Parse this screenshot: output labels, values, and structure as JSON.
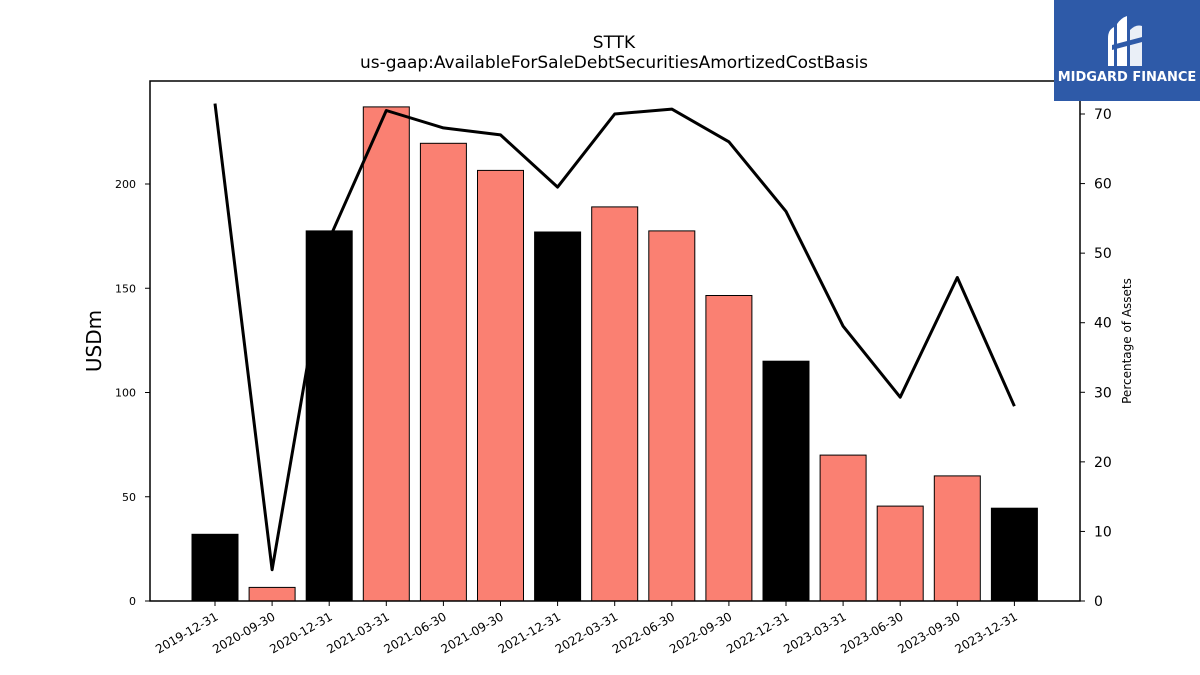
{
  "chart_data": {
    "type": "bar",
    "title": "STTK",
    "subtitle": "us-gaap:AvailableForSaleDebtSecuritiesAmortizedCostBasis",
    "ylabel": "USDm",
    "ylabel_right": "Percentage of Assets",
    "ylim": [
      0,
      240
    ],
    "ylim_right": [
      0,
      75
    ],
    "yticks": [
      0,
      50,
      100,
      150,
      200
    ],
    "yticks_right": [
      0,
      10,
      20,
      30,
      40,
      50,
      60,
      70
    ],
    "grid": false,
    "categories": [
      "2019-12-31",
      "2020-09-30",
      "2020-12-31",
      "2021-03-31",
      "2021-06-30",
      "2021-09-30",
      "2021-12-31",
      "2022-03-31",
      "2022-06-30",
      "2022-09-30",
      "2022-12-31",
      "2023-03-31",
      "2023-06-30",
      "2023-09-30",
      "2023-12-31"
    ],
    "series": [
      {
        "type": "bar",
        "axis": "left",
        "values": [
          32,
          6.5,
          177.5,
          237,
          219.5,
          206.5,
          177,
          189,
          177.5,
          146.5,
          115,
          70,
          45.5,
          60,
          44.5
        ],
        "colors": [
          "#000000",
          "#fa8072",
          "#000000",
          "#fa8072",
          "#fa8072",
          "#fa8072",
          "#000000",
          "#fa8072",
          "#fa8072",
          "#fa8072",
          "#000000",
          "#fa8072",
          "#fa8072",
          "#fa8072",
          "#000000"
        ]
      },
      {
        "type": "line",
        "axis": "right",
        "color": "#000000",
        "values": [
          71.5,
          4.5,
          52,
          70.5,
          68,
          67,
          59.5,
          70,
          70.7,
          66,
          56,
          39.5,
          29.3,
          46.5,
          28
        ]
      }
    ]
  },
  "logo": {
    "text": "MIDGARD FINANCE",
    "background": "#2e5aa8"
  }
}
